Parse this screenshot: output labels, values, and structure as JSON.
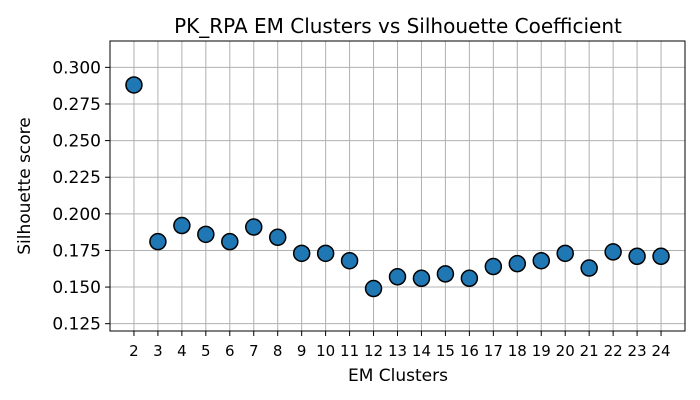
{
  "chart_data": {
    "type": "scatter",
    "title": "PK_RPA EM Clusters vs Silhouette Coefficient",
    "xlabel": "EM Clusters",
    "ylabel": "Silhouette score",
    "x": [
      2,
      3,
      4,
      5,
      6,
      7,
      8,
      9,
      10,
      11,
      12,
      13,
      14,
      15,
      16,
      17,
      18,
      19,
      20,
      21,
      22,
      23,
      24
    ],
    "y": [
      0.288,
      0.181,
      0.192,
      0.186,
      0.181,
      0.191,
      0.184,
      0.173,
      0.173,
      0.168,
      0.149,
      0.157,
      0.156,
      0.159,
      0.156,
      0.164,
      0.166,
      0.168,
      0.173,
      0.163,
      0.174,
      0.171,
      0.171
    ],
    "xticks": [
      "2",
      "3",
      "4",
      "5",
      "6",
      "7",
      "8",
      "9",
      "10",
      "11",
      "12",
      "13",
      "14",
      "15",
      "16",
      "17",
      "18",
      "19",
      "20",
      "21",
      "22",
      "23",
      "24"
    ],
    "yticks": [
      0.125,
      0.15,
      0.175,
      0.2,
      0.225,
      0.25,
      0.275,
      0.3
    ],
    "yticklabels": [
      "0.125",
      "0.150",
      "0.175",
      "0.200",
      "0.225",
      "0.250",
      "0.275",
      "0.300"
    ],
    "xlim": [
      1,
      25
    ],
    "ylim": [
      0.12,
      0.318
    ],
    "grid": true,
    "marker_color": "#1f77b4",
    "marker_edge": "#000000"
  }
}
